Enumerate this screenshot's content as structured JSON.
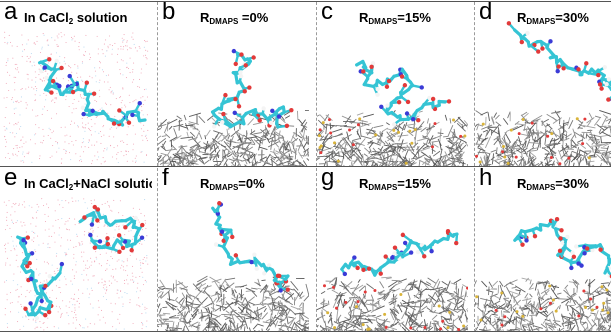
{
  "panels": [
    {
      "letter": "a",
      "kind": "solution",
      "caption_main": "In CaCl",
      "caption_sub": "2",
      "caption_tail": " solution",
      "surface": false,
      "salt": false,
      "mol": 0
    },
    {
      "letter": "b",
      "kind": "r",
      "caption_main": "R",
      "caption_sub": "DMAPS",
      "caption_tail": " =0%",
      "surface": true,
      "salt": false,
      "mol": 1
    },
    {
      "letter": "c",
      "kind": "r",
      "caption_main": "R",
      "caption_sub": "DMAPS",
      "caption_tail": "=15%",
      "surface": true,
      "salt": true,
      "mol": 2
    },
    {
      "letter": "d",
      "kind": "r",
      "caption_main": "R",
      "caption_sub": "DMAPS",
      "caption_tail": "=30%",
      "surface": true,
      "salt": true,
      "mol": 3
    },
    {
      "letter": "e",
      "kind": "solution",
      "caption_main": "In CaCl",
      "caption_sub": "2",
      "caption_tail": "+NaCl solution",
      "surface": false,
      "salt": false,
      "mol": 4
    },
    {
      "letter": "f",
      "kind": "r",
      "caption_main": "R",
      "caption_sub": "DMAPS",
      "caption_tail": "=0%",
      "surface": true,
      "salt": false,
      "mol": 5
    },
    {
      "letter": "g",
      "kind": "r",
      "caption_main": "R",
      "caption_sub": "DMAPS",
      "caption_tail": "=15%",
      "surface": true,
      "salt": true,
      "mol": 6
    },
    {
      "letter": "h",
      "kind": "r",
      "caption_main": "R",
      "caption_sub": "DMAPS",
      "caption_tail": "=30%",
      "surface": true,
      "salt": true,
      "mol": 7
    }
  ],
  "colors": {
    "carbon": "#35c4d4",
    "oxygen": "#e23a3a",
    "nitrogen": "#3b3bd6",
    "surface": "#6f6f6f",
    "sulfur": "#d9b43a",
    "solvent_dots": "#f0a8b8"
  }
}
